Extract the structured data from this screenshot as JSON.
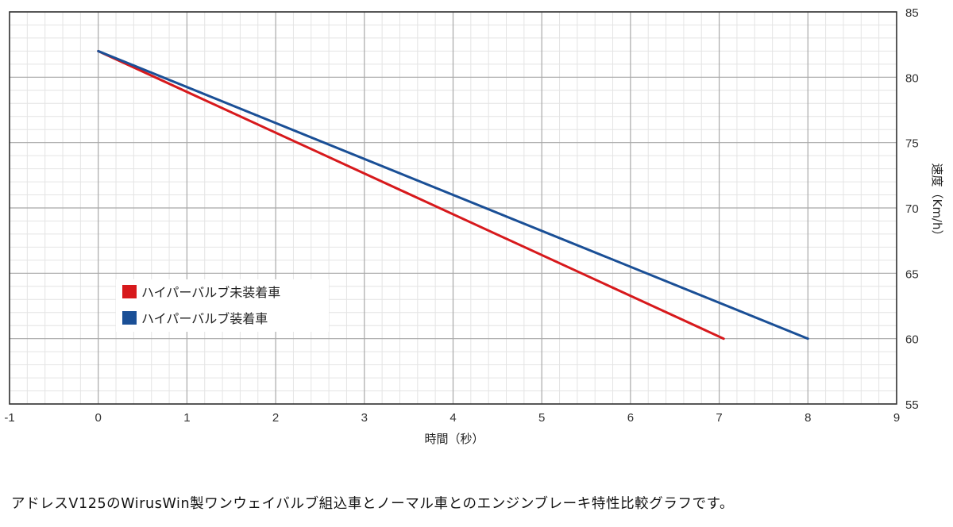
{
  "chart_data": {
    "type": "line",
    "xlabel": "時間（秒）",
    "ylabel": "速度（Km/h）",
    "xlim": [
      -1,
      9
    ],
    "ylim": [
      55,
      85
    ],
    "x_ticks": [
      "-1",
      "0",
      "1",
      "2",
      "3",
      "4",
      "5",
      "6",
      "7",
      "8",
      "9"
    ],
    "y_ticks": [
      "55",
      "60",
      "65",
      "70",
      "75",
      "80",
      "85"
    ],
    "grid": true,
    "legend_position": "lower-left",
    "series": [
      {
        "name": "ハイパーバルブ未装着車",
        "color": "#d7191c",
        "x": [
          0,
          7.05
        ],
        "y": [
          82,
          60
        ]
      },
      {
        "name": "ハイパーバルブ装着車",
        "color": "#1a4f96",
        "x": [
          0,
          8.0
        ],
        "y": [
          82,
          60
        ]
      }
    ]
  },
  "caption": "アドレスV125のWirusWin製ワンウェイバルブ組込車とノーマル車とのエンジンブレーキ特性比較グラフです。"
}
